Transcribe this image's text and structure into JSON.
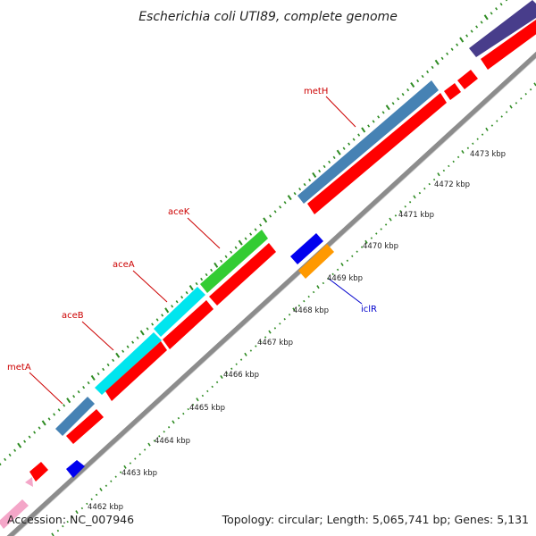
{
  "title": "Escherichia coli UTI89, complete genome",
  "footer": {
    "accession": "Accession: NC_007946",
    "topology": "Topology: circular; Length: 5,065,741 bp; Genes: 5,131"
  },
  "colors": {
    "backbone": "#8c8c8c",
    "forward_cds": "#4682b4",
    "reverse_cds": "#ff0000",
    "tick_green": "#2e8b22",
    "label_red": "#cc0000",
    "label_blue": "#0000cc"
  },
  "kbp_labels": [
    "4462 kbp",
    "4463 kbp",
    "4464 kbp",
    "4465 kbp",
    "4466 kbp",
    "4467 kbp",
    "4468 kbp",
    "4469 kbp",
    "4470 kbp",
    "4471 kbp",
    "4472 kbp",
    "4473 kbp"
  ],
  "gene_labels": [
    {
      "name": "metA",
      "color": "#cc0000"
    },
    {
      "name": "aceB",
      "color": "#cc0000"
    },
    {
      "name": "aceA",
      "color": "#cc0000"
    },
    {
      "name": "aceK",
      "color": "#cc0000"
    },
    {
      "name": "metH",
      "color": "#cc0000"
    },
    {
      "name": "iclR",
      "color": "#0000cc"
    }
  ]
}
